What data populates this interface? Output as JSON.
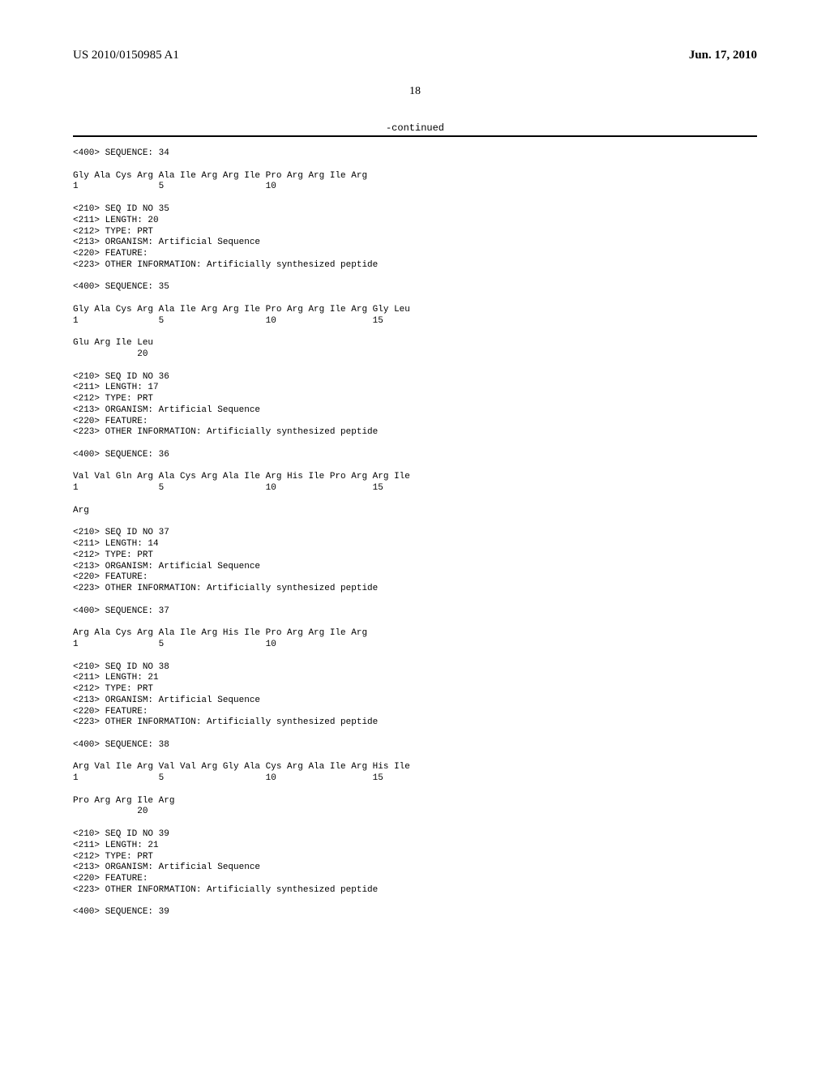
{
  "header": {
    "pub_id": "US 2010/0150985 A1",
    "pub_date": "Jun. 17, 2010",
    "page_number": "18"
  },
  "continued_label": "-continued",
  "blocks": [
    {
      "lines": [
        "<400> SEQUENCE: 34",
        "",
        "Gly Ala Cys Arg Ala Ile Arg Arg Ile Pro Arg Arg Ile Arg",
        "1               5                   10"
      ]
    },
    {
      "lines": [
        "<210> SEQ ID NO 35",
        "<211> LENGTH: 20",
        "<212> TYPE: PRT",
        "<213> ORGANISM: Artificial Sequence",
        "<220> FEATURE:",
        "<223> OTHER INFORMATION: Artificially synthesized peptide",
        "",
        "<400> SEQUENCE: 35",
        "",
        "Gly Ala Cys Arg Ala Ile Arg Arg Ile Pro Arg Arg Ile Arg Gly Leu",
        "1               5                   10                  15",
        "",
        "Glu Arg Ile Leu",
        "            20"
      ]
    },
    {
      "lines": [
        "<210> SEQ ID NO 36",
        "<211> LENGTH: 17",
        "<212> TYPE: PRT",
        "<213> ORGANISM: Artificial Sequence",
        "<220> FEATURE:",
        "<223> OTHER INFORMATION: Artificially synthesized peptide",
        "",
        "<400> SEQUENCE: 36",
        "",
        "Val Val Gln Arg Ala Cys Arg Ala Ile Arg His Ile Pro Arg Arg Ile",
        "1               5                   10                  15",
        "",
        "Arg"
      ]
    },
    {
      "lines": [
        "<210> SEQ ID NO 37",
        "<211> LENGTH: 14",
        "<212> TYPE: PRT",
        "<213> ORGANISM: Artificial Sequence",
        "<220> FEATURE:",
        "<223> OTHER INFORMATION: Artificially synthesized peptide",
        "",
        "<400> SEQUENCE: 37",
        "",
        "Arg Ala Cys Arg Ala Ile Arg His Ile Pro Arg Arg Ile Arg",
        "1               5                   10"
      ]
    },
    {
      "lines": [
        "<210> SEQ ID NO 38",
        "<211> LENGTH: 21",
        "<212> TYPE: PRT",
        "<213> ORGANISM: Artificial Sequence",
        "<220> FEATURE:",
        "<223> OTHER INFORMATION: Artificially synthesized peptide",
        "",
        "<400> SEQUENCE: 38",
        "",
        "Arg Val Ile Arg Val Val Arg Gly Ala Cys Arg Ala Ile Arg His Ile",
        "1               5                   10                  15",
        "",
        "Pro Arg Arg Ile Arg",
        "            20"
      ]
    },
    {
      "lines": [
        "<210> SEQ ID NO 39",
        "<211> LENGTH: 21",
        "<212> TYPE: PRT",
        "<213> ORGANISM: Artificial Sequence",
        "<220> FEATURE:",
        "<223> OTHER INFORMATION: Artificially synthesized peptide",
        "",
        "<400> SEQUENCE: 39"
      ]
    }
  ]
}
